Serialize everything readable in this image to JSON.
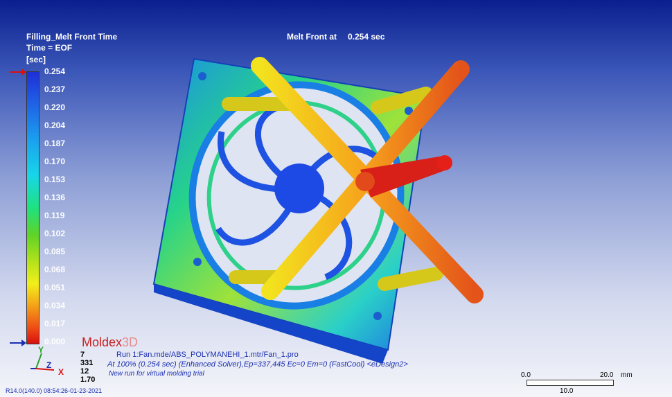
{
  "legend": {
    "title": "Filling_Melt Front Time",
    "subtitle": "Time = EOF",
    "unit": "[sec]",
    "ticks": [
      "0.254",
      "0.237",
      "0.220",
      "0.204",
      "0.187",
      "0.170",
      "0.153",
      "0.136",
      "0.119",
      "0.102",
      "0.085",
      "0.068",
      "0.051",
      "0.034",
      "0.017",
      "0.000"
    ]
  },
  "header": {
    "melt_label": "Melt Front at",
    "melt_value": "0.254 sec"
  },
  "brand": {
    "name_a": "Moldex",
    "name_b": "3D"
  },
  "run_info": {
    "line1": "Run 1:Fan.mde/ABS_POLYMANEHI_1.mtr/Fan_1.pro",
    "line2": "At 100% (0.254 sec) (Enhanced Solver),Ep=337,445 Ec=0 Em=0 (FastCool) <eDesign2>",
    "line3": "New run for virtual molding trial"
  },
  "run_numbers": [
    "7",
    "331",
    "12",
    "1.70"
  ],
  "axes": {
    "y": "Y",
    "z": "Z",
    "x": "X"
  },
  "scale_bar": {
    "left": "0.0",
    "right": "20.0",
    "unit": "mm",
    "mid": "10.0"
  },
  "footer": "R14.0(140.0) 08:54:26-01-23-2021",
  "colors": {
    "accent_red": "#d81010",
    "accent_blue": "#1a2fb0"
  }
}
